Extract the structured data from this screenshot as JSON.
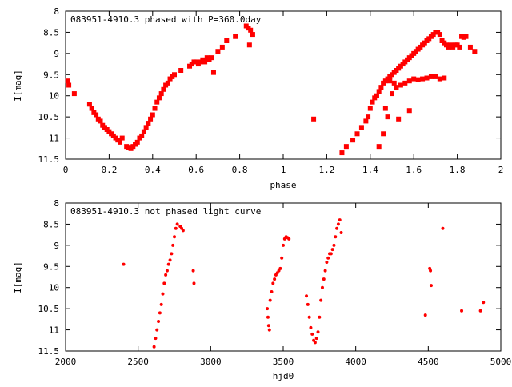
{
  "chart_data": [
    {
      "type": "scatter",
      "title": "083951-4910.3 phased with P=360.0day",
      "xlabel": "phase",
      "ylabel": "I[mag]",
      "xlim": [
        0,
        2
      ],
      "ylim": [
        11.5,
        8
      ],
      "y_reversed": true,
      "xticks": [
        "0",
        "0.2",
        "0.4",
        "0.6",
        "0.8",
        "1",
        "1.2",
        "1.4",
        "1.6",
        "1.8",
        "2"
      ],
      "yticks": [
        "8",
        "8.5",
        "9",
        "9.5",
        "10",
        "10.5",
        "11",
        "11.5"
      ],
      "grid": false,
      "color": "#ff0000",
      "series": [
        {
          "x": [
            0.01,
            0.015,
            0.04,
            0.11,
            0.12,
            0.13,
            0.14,
            0.15,
            0.16,
            0.17,
            0.18,
            0.19,
            0.2,
            0.21,
            0.22,
            0.23,
            0.24,
            0.25,
            0.26,
            0.28,
            0.29,
            0.3,
            0.31,
            0.32,
            0.33,
            0.34,
            0.35,
            0.36,
            0.37,
            0.38,
            0.39,
            0.4,
            0.41,
            0.42,
            0.43,
            0.44,
            0.45,
            0.46,
            0.47,
            0.48,
            0.49,
            0.5,
            0.53,
            0.57,
            0.58,
            0.59,
            0.6,
            0.61,
            0.62,
            0.63,
            0.64,
            0.65,
            0.66,
            0.67,
            0.68,
            0.7,
            0.72,
            0.74,
            0.78,
            0.83,
            0.84,
            0.85,
            0.86,
            0.845,
            1.14,
            1.27,
            1.29,
            1.32,
            1.34,
            1.36,
            1.38,
            1.39,
            1.4,
            1.41,
            1.42,
            1.43,
            1.44,
            1.45,
            1.46,
            1.47,
            1.48,
            1.49,
            1.5,
            1.51,
            1.52,
            1.53,
            1.54,
            1.55,
            1.56,
            1.57,
            1.58,
            1.59,
            1.6,
            1.61,
            1.62,
            1.63,
            1.64,
            1.65,
            1.66,
            1.67,
            1.68,
            1.69,
            1.7,
            1.71,
            1.72,
            1.73,
            1.74,
            1.75,
            1.76,
            1.77,
            1.78,
            1.79,
            1.8,
            1.81,
            1.82,
            1.83,
            1.84,
            1.86,
            1.88,
            1.5,
            1.52,
            1.54,
            1.56,
            1.58,
            1.6,
            1.62,
            1.64,
            1.66,
            1.68,
            1.7,
            1.72,
            1.74,
            1.44,
            1.46,
            1.48,
            1.47,
            1.49,
            1.51,
            1.53,
            1.58
          ],
          "y": [
            9.65,
            9.75,
            9.95,
            10.2,
            10.3,
            10.4,
            10.45,
            10.55,
            10.6,
            10.7,
            10.75,
            10.8,
            10.85,
            10.9,
            10.95,
            11.0,
            11.05,
            11.1,
            11.0,
            11.2,
            11.22,
            11.25,
            11.2,
            11.15,
            11.1,
            11.0,
            10.95,
            10.85,
            10.75,
            10.65,
            10.55,
            10.45,
            10.3,
            10.15,
            10.05,
            9.95,
            9.85,
            9.75,
            9.7,
            9.6,
            9.55,
            9.5,
            9.4,
            9.3,
            9.25,
            9.2,
            9.2,
            9.25,
            9.2,
            9.15,
            9.2,
            9.1,
            9.15,
            9.1,
            9.45,
            8.95,
            8.85,
            8.7,
            8.6,
            8.35,
            8.4,
            8.45,
            8.55,
            8.8,
            10.55,
            11.35,
            11.2,
            11.05,
            10.9,
            10.75,
            10.6,
            10.5,
            10.3,
            10.15,
            10.05,
            10.0,
            9.9,
            9.8,
            9.7,
            9.65,
            9.6,
            9.55,
            9.5,
            9.45,
            9.4,
            9.35,
            9.3,
            9.25,
            9.2,
            9.15,
            9.1,
            9.05,
            9.0,
            8.95,
            8.9,
            8.85,
            8.8,
            8.75,
            8.7,
            8.65,
            8.6,
            8.55,
            8.5,
            8.5,
            8.55,
            8.7,
            8.75,
            8.8,
            8.85,
            8.8,
            8.85,
            8.8,
            8.8,
            8.85,
            8.6,
            8.62,
            8.6,
            8.85,
            8.95,
            9.95,
            9.8,
            9.75,
            9.7,
            9.65,
            9.6,
            9.62,
            9.6,
            9.58,
            9.55,
            9.55,
            9.6,
            9.58,
            11.2,
            10.9,
            10.5,
            10.3,
            9.65,
            9.7,
            10.55,
            10.35
          ]
        }
      ]
    },
    {
      "type": "scatter",
      "title": "083951-4910.3 not phased light curve",
      "xlabel": "hjd0",
      "ylabel": "I[mag]",
      "xlim": [
        2000,
        5000
      ],
      "ylim": [
        11.5,
        8
      ],
      "y_reversed": true,
      "xticks": [
        "2000",
        "2500",
        "3000",
        "3500",
        "4000",
        "4500",
        "5000"
      ],
      "yticks": [
        "8",
        "8.5",
        "9",
        "9.5",
        "10",
        "10.5",
        "11",
        "11.5"
      ],
      "grid": false,
      "color": "#ff0000",
      "series": [
        {
          "x": [
            2400,
            2610,
            2620,
            2630,
            2640,
            2650,
            2660,
            2670,
            2680,
            2690,
            2700,
            2710,
            2720,
            2730,
            2740,
            2750,
            2760,
            2770,
            2790,
            2800,
            2810,
            2880,
            2885,
            3390,
            3395,
            3400,
            3405,
            3410,
            3420,
            3430,
            3440,
            3450,
            3460,
            3470,
            3480,
            3490,
            3500,
            3510,
            3520,
            3530,
            3540,
            3660,
            3670,
            3680,
            3690,
            3700,
            3710,
            3720,
            3730,
            3740,
            3750,
            3760,
            3770,
            3780,
            3790,
            3800,
            3810,
            3820,
            3830,
            3840,
            3850,
            3860,
            3870,
            3880,
            3890,
            3900,
            4480,
            4510,
            4515,
            4520,
            4600,
            4730,
            4860,
            4880
          ],
          "y": [
            9.45,
            11.4,
            11.2,
            11.0,
            10.8,
            10.6,
            10.4,
            10.15,
            9.9,
            9.7,
            9.6,
            9.45,
            9.35,
            9.2,
            9.0,
            8.8,
            8.6,
            8.5,
            8.55,
            8.6,
            8.65,
            9.6,
            9.9,
            10.5,
            10.7,
            10.9,
            11.0,
            10.3,
            10.1,
            9.9,
            9.8,
            9.7,
            9.65,
            9.6,
            9.55,
            9.3,
            9.0,
            8.85,
            8.8,
            8.82,
            8.85,
            10.2,
            10.4,
            10.7,
            10.95,
            11.1,
            11.25,
            11.3,
            11.2,
            11.05,
            10.7,
            10.3,
            10.0,
            9.8,
            9.6,
            9.4,
            9.3,
            9.2,
            9.2,
            9.1,
            9.0,
            8.8,
            8.6,
            8.5,
            8.4,
            8.7,
            10.65,
            9.55,
            9.6,
            9.95,
            8.6,
            10.55,
            10.55,
            10.35
          ]
        }
      ]
    }
  ]
}
